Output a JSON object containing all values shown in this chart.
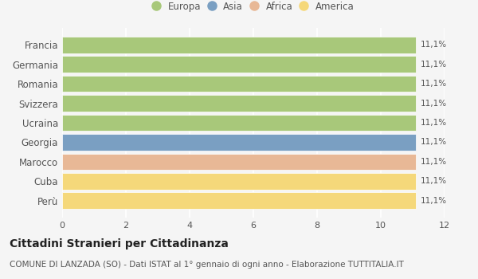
{
  "categories": [
    "Francia",
    "Germania",
    "Romania",
    "Svizzera",
    "Ucraina",
    "Georgia",
    "Marocco",
    "Cuba",
    "Perù"
  ],
  "values": [
    11.1,
    11.1,
    11.1,
    11.1,
    11.1,
    11.1,
    11.1,
    11.1,
    11.1
  ],
  "bar_colors": [
    "#a8c87a",
    "#a8c87a",
    "#a8c87a",
    "#a8c87a",
    "#a8c87a",
    "#7a9fc2",
    "#e8b896",
    "#f5d87a",
    "#f5d87a"
  ],
  "labels": [
    "11,1%",
    "11,1%",
    "11,1%",
    "11,1%",
    "11,1%",
    "11,1%",
    "11,1%",
    "11,1%",
    "11,1%"
  ],
  "legend_labels": [
    "Europa",
    "Asia",
    "Africa",
    "America"
  ],
  "legend_colors": [
    "#a8c87a",
    "#7a9fc2",
    "#e8b896",
    "#f5d87a"
  ],
  "xlim": [
    0,
    12
  ],
  "xticks": [
    0,
    2,
    4,
    6,
    8,
    10,
    12
  ],
  "title": "Cittadini Stranieri per Cittadinanza",
  "subtitle": "COMUNE DI LANZADA (SO) - Dati ISTAT al 1° gennaio di ogni anno - Elaborazione TUTTITALIA.IT",
  "bg_color": "#f5f5f5",
  "bar_edge_color": "white",
  "grid_color": "white",
  "tick_label_color": "#555555",
  "value_label_color": "#555555",
  "title_fontsize": 10,
  "subtitle_fontsize": 7.5,
  "bar_height": 0.85
}
